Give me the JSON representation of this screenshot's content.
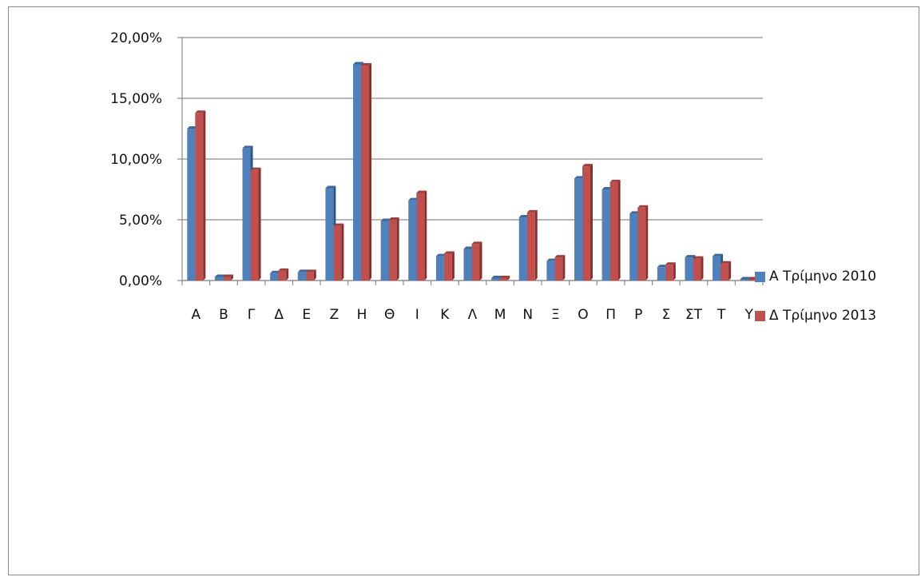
{
  "chart_data": {
    "type": "bar",
    "title": "",
    "xlabel": "",
    "ylabel": "",
    "ylim": [
      0,
      20
    ],
    "yticks": [
      "0,00%",
      "5,00%",
      "10,00%",
      "15,00%",
      "20,00%"
    ],
    "categories": [
      "Α",
      "Β",
      "Γ",
      "Δ",
      "Ε",
      "Ζ",
      "Η",
      "Θ",
      "Ι",
      "Κ",
      "Λ",
      "Μ",
      "Ν",
      "Ξ",
      "Ο",
      "Π",
      "Ρ",
      "Σ",
      "ΣΤ",
      "Τ",
      "Υ"
    ],
    "series": [
      {
        "name": "Α Τρίμηνο 2010",
        "color": "#4f81bd",
        "values": [
          12.5,
          0.3,
          10.9,
          0.6,
          0.7,
          7.6,
          17.8,
          4.9,
          6.6,
          2.0,
          2.6,
          0.2,
          5.2,
          1.6,
          8.4,
          7.5,
          5.5,
          1.1,
          1.9,
          2.0,
          0.1
        ]
      },
      {
        "name": "Δ Τρίμηνο 2013",
        "color": "#c0504d",
        "values": [
          13.8,
          0.3,
          9.1,
          0.8,
          0.7,
          4.5,
          17.7,
          5.0,
          7.2,
          2.2,
          3.0,
          0.2,
          5.6,
          1.9,
          9.4,
          8.1,
          6.0,
          1.3,
          1.8,
          1.4,
          0.1
        ]
      }
    ],
    "grid": true,
    "legend_position": "right"
  }
}
